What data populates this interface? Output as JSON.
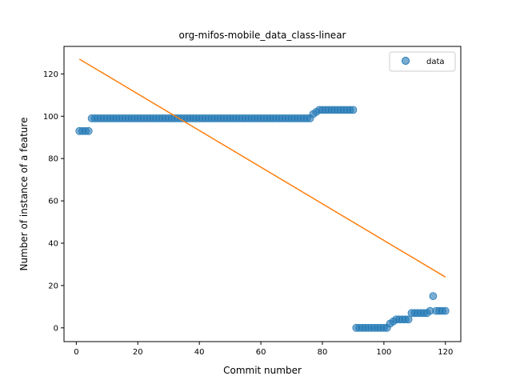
{
  "chart_data": {
    "type": "scatter",
    "title": "org-mifos-mobile_data_class-linear",
    "xlabel": "Commit number",
    "ylabel": "Number of instance of a feature",
    "xlim": [
      -4,
      125
    ],
    "ylim": [
      -6.5,
      133
    ],
    "x_ticks": [
      0,
      20,
      40,
      60,
      80,
      100,
      120
    ],
    "y_ticks": [
      0,
      20,
      40,
      60,
      80,
      100,
      120
    ],
    "grid": false,
    "legend": {
      "position": "top-right"
    },
    "colors": {
      "points": "#1f77b4",
      "line": "#ff7f0e",
      "axes": "#000000"
    },
    "series": [
      {
        "name": "data",
        "kind": "scatter",
        "segments": [
          {
            "x_start": 1,
            "x_end": 4,
            "y": 93
          },
          {
            "x_start": 5,
            "x_end": 76,
            "y": 99
          },
          {
            "x_start": 77,
            "x_end": 77,
            "y": 101
          },
          {
            "x_start": 78,
            "x_end": 78,
            "y": 102
          },
          {
            "x_start": 79,
            "x_end": 90,
            "y": 103
          },
          {
            "x_start": 91,
            "x_end": 101,
            "y": 0
          },
          {
            "x_start": 102,
            "x_end": 102,
            "y": 2
          },
          {
            "x_start": 103,
            "x_end": 103,
            "y": 3
          },
          {
            "x_start": 104,
            "x_end": 108,
            "y": 4
          },
          {
            "x_start": 109,
            "x_end": 114,
            "y": 7
          },
          {
            "x_start": 115,
            "x_end": 115,
            "y": 8
          },
          {
            "x_start": 116,
            "x_end": 116,
            "y": 15
          },
          {
            "x_start": 117,
            "x_end": 120,
            "y": 8
          }
        ]
      },
      {
        "kind": "line",
        "points": [
          [
            1,
            127
          ],
          [
            120,
            24
          ]
        ]
      }
    ]
  }
}
